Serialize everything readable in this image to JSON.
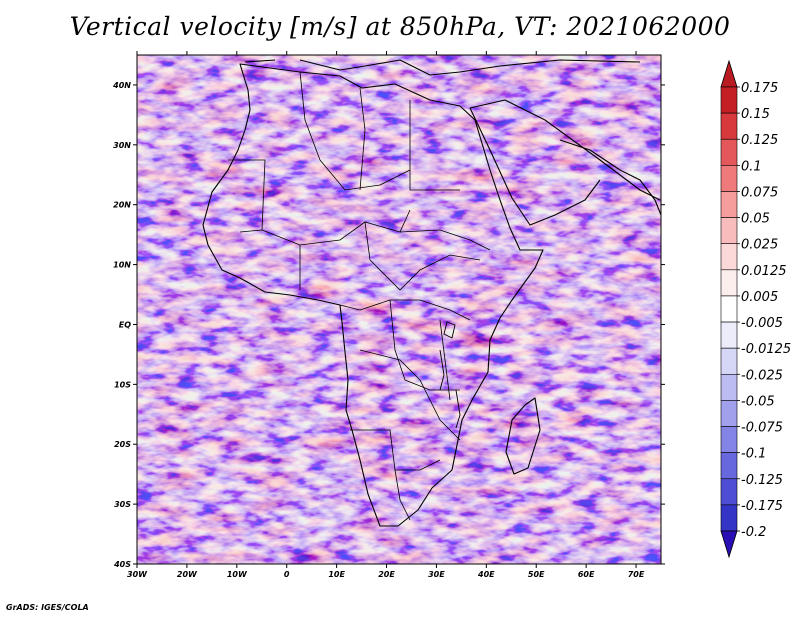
{
  "title": "Vertical velocity [m/s] at 850hPa, VT: 2021062000",
  "footer": "GrADS: IGES/COLA",
  "map": {
    "lon_range": [
      -30,
      75
    ],
    "lat_range": [
      -40,
      45
    ],
    "lat_ticks": [
      {
        "value": 40,
        "label": "40N"
      },
      {
        "value": 30,
        "label": "30N"
      },
      {
        "value": 20,
        "label": "20N"
      },
      {
        "value": 10,
        "label": "10N"
      },
      {
        "value": 0,
        "label": "EQ"
      },
      {
        "value": -10,
        "label": "10S"
      },
      {
        "value": -20,
        "label": "20S"
      },
      {
        "value": -30,
        "label": "30S"
      },
      {
        "value": -40,
        "label": "40S"
      }
    ],
    "lon_ticks": [
      {
        "value": -30,
        "label": "30W"
      },
      {
        "value": -20,
        "label": "20W"
      },
      {
        "value": -10,
        "label": "10W"
      },
      {
        "value": 0,
        "label": "0"
      },
      {
        "value": 10,
        "label": "10E"
      },
      {
        "value": 20,
        "label": "20E"
      },
      {
        "value": 30,
        "label": "30E"
      },
      {
        "value": 40,
        "label": "40E"
      },
      {
        "value": 50,
        "label": "50E"
      },
      {
        "value": 60,
        "label": "60E"
      },
      {
        "value": 70,
        "label": "70E"
      }
    ]
  },
  "colorbar": {
    "levels": [
      {
        "label": "0.175",
        "color": "#c41f24"
      },
      {
        "label": "0.15",
        "color": "#d8393d"
      },
      {
        "label": "0.125",
        "color": "#e4585b"
      },
      {
        "label": "0.1",
        "color": "#ee7a7c"
      },
      {
        "label": "0.075",
        "color": "#f59c9c"
      },
      {
        "label": "0.05",
        "color": "#f9bcbc"
      },
      {
        "label": "0.025",
        "color": "#fcd9d9"
      },
      {
        "label": "0.0125",
        "color": "#fdeeee"
      },
      {
        "label": "0.005",
        "color": "#ffffff"
      },
      {
        "label": "-0.005",
        "color": "#ececfb"
      },
      {
        "label": "-0.0125",
        "color": "#d6d6f7"
      },
      {
        "label": "-0.025",
        "color": "#bcbcf2"
      },
      {
        "label": "-0.05",
        "color": "#a0a0ec"
      },
      {
        "label": "-0.075",
        "color": "#8484e6"
      },
      {
        "label": "-0.1",
        "color": "#6868de"
      },
      {
        "label": "-0.125",
        "color": "#4e4ed4"
      },
      {
        "label": "-0.175",
        "color": "#3434c6"
      },
      {
        "label": "-0.2",
        "color": "#2a1eb0"
      }
    ],
    "top_arrow_color": "#b81c22",
    "bottom_arrow_color": "#2a10b4"
  }
}
